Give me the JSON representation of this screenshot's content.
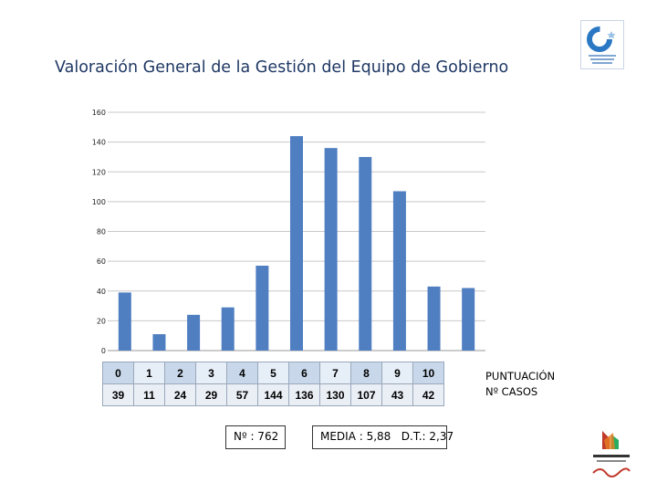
{
  "page": {
    "title": "Valoración General de la Gestión del Equipo de Gobierno",
    "table_row_labels": [
      "PUNTUACIÓN",
      "Nº CASOS"
    ],
    "total_label": "Nº : 762",
    "stats_label": "MEDIA : 5,88   D.T.: 2,37"
  },
  "colors": {
    "bar": "#4f7ec1",
    "title": "#1f3864",
    "grid": "#c8c8c8"
  },
  "chart_data": {
    "type": "bar",
    "categories": [
      "0",
      "1",
      "2",
      "3",
      "4",
      "5",
      "6",
      "7",
      "8",
      "9",
      "10"
    ],
    "values": [
      39,
      11,
      24,
      29,
      57,
      144,
      136,
      130,
      107,
      43,
      42
    ],
    "yticks": [
      0,
      20,
      40,
      60,
      80,
      100,
      120,
      140,
      160
    ],
    "ylim": [
      0,
      160
    ],
    "grid": true,
    "legend": "none"
  }
}
